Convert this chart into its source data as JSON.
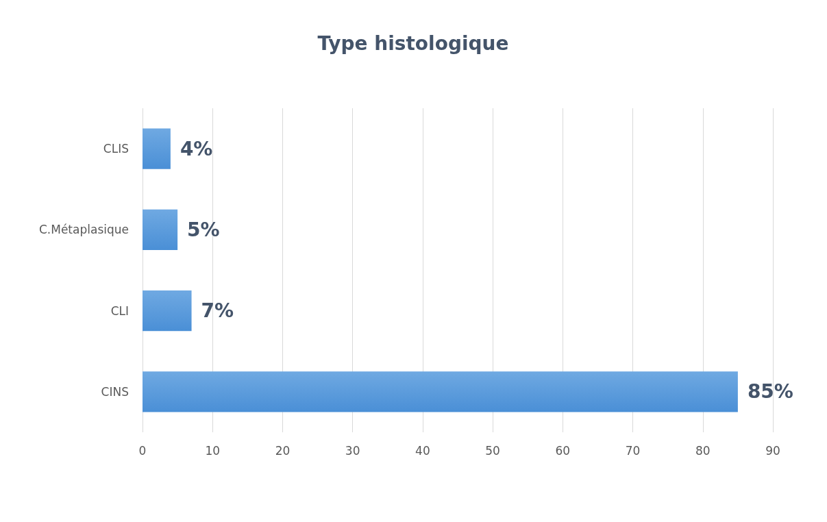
{
  "chart_data": {
    "type": "bar",
    "title": "Type histologique",
    "orientation": "horizontal",
    "categories": [
      "CLIS",
      "C.Métaplasique",
      "CLI",
      "CINS"
    ],
    "values": [
      4,
      5,
      7,
      85
    ],
    "value_labels": [
      "4%",
      "5%",
      "7%",
      "85%"
    ],
    "color": "#4a8fd6",
    "xlim": [
      0,
      90
    ],
    "xticks": [
      0,
      10,
      20,
      30,
      40,
      50,
      60,
      70,
      80,
      90
    ],
    "grid": "x"
  }
}
